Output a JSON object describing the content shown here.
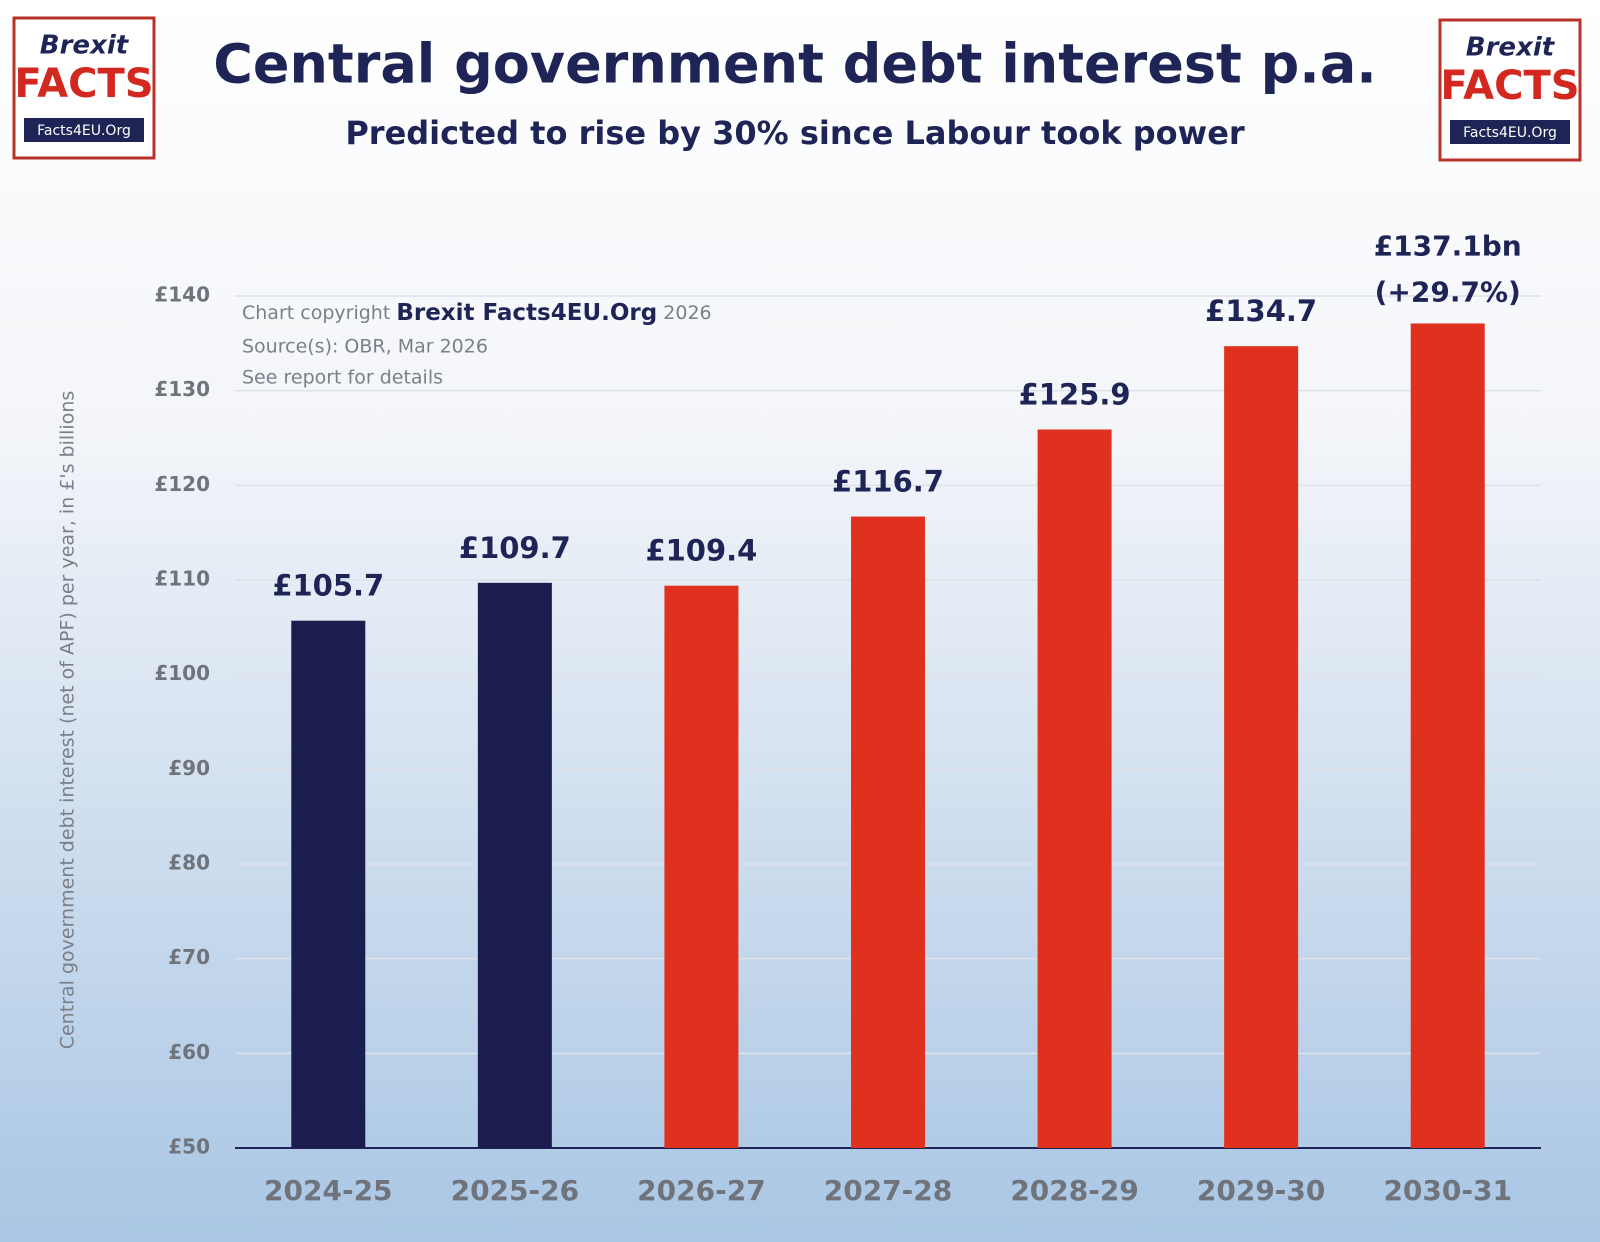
{
  "chart_data": {
    "type": "bar",
    "title": "Central government debt interest p.a.",
    "subtitle": "Predicted to rise by 30% since Labour took power",
    "y_axis_label": "Central government debt interest (net of APF) per year, in £'s billions",
    "categories": [
      "2024-25",
      "2025-26",
      "2026-27",
      "2027-28",
      "2028-29",
      "2029-30",
      "2030-31"
    ],
    "values": [
      105.7,
      109.7,
      109.4,
      116.7,
      125.9,
      134.7,
      137.1
    ],
    "value_labels": [
      "£105.7",
      "£109.7",
      "£109.4",
      "£116.7",
      "£125.9",
      "£134.7",
      "£137.1bn"
    ],
    "annotation": "(+29.7%)",
    "colors": [
      "#1c1d4f",
      "#1c1d4f",
      "#e0301e",
      "#e0301e",
      "#e0301e",
      "#e0301e",
      "#e0301e"
    ],
    "ylim": [
      50,
      140
    ],
    "yticks": [
      {
        "value": 50,
        "label": "£50"
      },
      {
        "value": 60,
        "label": "£60"
      },
      {
        "value": 70,
        "label": "£70"
      },
      {
        "value": 80,
        "label": "£80"
      },
      {
        "value": 90,
        "label": "£90"
      },
      {
        "value": 100,
        "label": "£100"
      },
      {
        "value": 110,
        "label": "£110"
      },
      {
        "value": 120,
        "label": "£120"
      },
      {
        "value": 130,
        "label": "£130"
      },
      {
        "value": 140,
        "label": "£140"
      }
    ],
    "grid": true,
    "notes": {
      "copyright_prefix": "Chart copyright",
      "copyright_name": "Brexit Facts4EU.Org",
      "copyright_year": "2026",
      "source": "Source(s): OBR, Mar 2026",
      "details": "See report for details"
    },
    "logo": {
      "line1": "Brexit",
      "line2": "FACTS",
      "line3": "Facts4EU.Org"
    }
  }
}
